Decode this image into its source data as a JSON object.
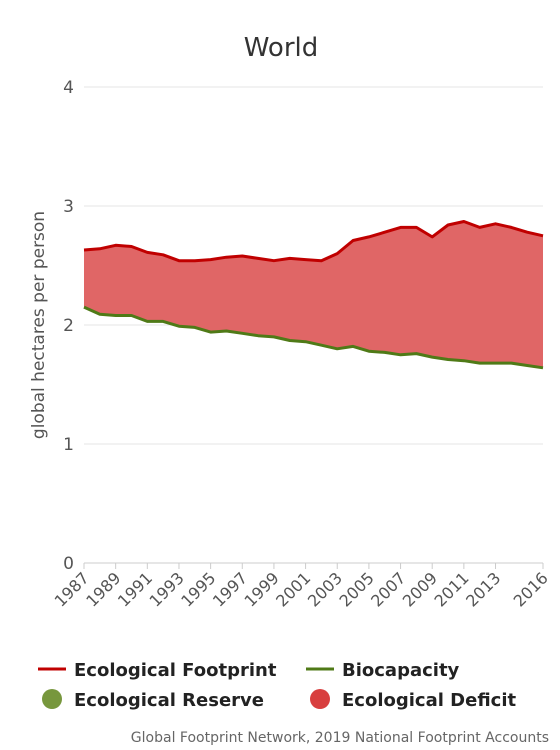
{
  "chart_data": {
    "type": "area",
    "title": "World",
    "xlabel": "",
    "ylabel": "global hectares per person",
    "ylim": [
      0,
      4
    ],
    "yticks": [
      "0",
      "1",
      "2",
      "3",
      "4"
    ],
    "xticks": [
      "1987",
      "1989",
      "1991",
      "1993",
      "1995",
      "1997",
      "1999",
      "2001",
      "2003",
      "2005",
      "2007",
      "2009",
      "2011",
      "2013",
      "2016"
    ],
    "x": [
      1987,
      1988,
      1989,
      1990,
      1991,
      1992,
      1993,
      1994,
      1995,
      1996,
      1997,
      1998,
      1999,
      2000,
      2001,
      2002,
      2003,
      2004,
      2005,
      2006,
      2007,
      2008,
      2009,
      2010,
      2011,
      2012,
      2013,
      2014,
      2015,
      2016
    ],
    "series": [
      {
        "name": "Ecological Footprint",
        "color": "#c00000",
        "values": [
          2.63,
          2.64,
          2.67,
          2.66,
          2.61,
          2.59,
          2.54,
          2.54,
          2.55,
          2.57,
          2.58,
          2.56,
          2.54,
          2.56,
          2.55,
          2.54,
          2.6,
          2.71,
          2.74,
          2.78,
          2.82,
          2.82,
          2.74,
          2.84,
          2.87,
          2.82,
          2.85,
          2.82,
          2.78,
          2.75
        ]
      },
      {
        "name": "Biocapacity",
        "color": "#4f7a17",
        "values": [
          2.15,
          2.09,
          2.08,
          2.08,
          2.03,
          2.03,
          1.99,
          1.98,
          1.94,
          1.95,
          1.93,
          1.91,
          1.9,
          1.87,
          1.86,
          1.83,
          1.8,
          1.82,
          1.78,
          1.77,
          1.75,
          1.76,
          1.73,
          1.71,
          1.7,
          1.68,
          1.68,
          1.68,
          1.66,
          1.64
        ]
      }
    ],
    "areas": [
      {
        "name": "Ecological Reserve",
        "color": "#77973d"
      },
      {
        "name": "Ecological Deficit",
        "color": "#d83f3f",
        "fill": "#e06666"
      }
    ],
    "grid": true,
    "legend_position": "bottom"
  },
  "credits": "Global Footprint Network, 2019 National Footprint Accounts"
}
